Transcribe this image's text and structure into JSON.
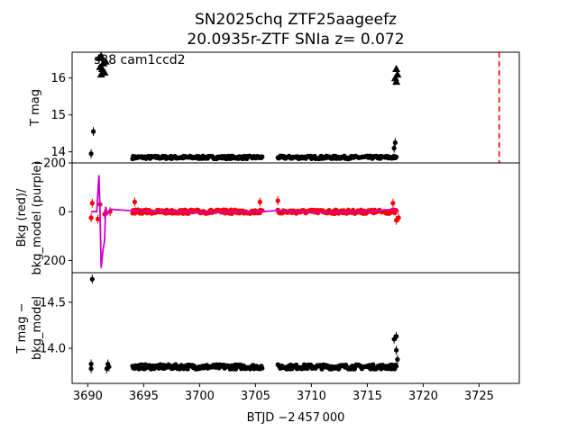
{
  "chart_data": {
    "type": "scatter",
    "title_line1": "SN2025chq  ZTF25aageefz",
    "title_line2": "20.0935r-ZTF SNIa z= 0.072",
    "annotation": "s88 cam1ccd2",
    "xlabel": "BTJD −2 457 000",
    "xlim": [
      3688.6,
      3728.6
    ],
    "xticks": [
      3690,
      3695,
      3700,
      3705,
      3710,
      3715,
      3720,
      3725
    ],
    "x_tick_labels": [
      "3690",
      "3695",
      "3700",
      "3705",
      "3710",
      "3715",
      "3720",
      "3725"
    ],
    "panels": [
      {
        "id": "top",
        "ylabel_lines": [
          "T mag"
        ],
        "ylim": [
          16.7,
          13.7
        ],
        "yticks": [
          14,
          15,
          16
        ],
        "y_tick_labels": [
          "14",
          "15",
          "16"
        ],
        "vline": {
          "x": 3726.8,
          "color": "#ff0000",
          "style": "dashed"
        },
        "series": [
          {
            "color": "#000000",
            "segments": [
              [
                3694.0,
                3705.6,
                13.85,
                0.04
              ],
              [
                3707.0,
                3717.6,
                13.85,
                0.04
              ]
            ],
            "points": [
              [
                3690.3,
                13.95
              ],
              [
                3690.5,
                14.55
              ],
              [
                3717.5,
                14.25
              ],
              [
                3717.4,
                14.1
              ]
            ]
          },
          {
            "color": "#000000",
            "marker": "triangle",
            "points": [
              [
                3691.0,
                16.55
              ],
              [
                3691.1,
                16.3
              ],
              [
                3691.2,
                16.1
              ],
              [
                3691.3,
                16.25
              ],
              [
                3691.4,
                16.4
              ],
              [
                3691.5,
                16.15
              ],
              [
                3691.6,
                16.45
              ],
              [
                3691.2,
                16.6
              ],
              [
                3717.6,
                15.9
              ],
              [
                3717.7,
                16.1
              ],
              [
                3717.5,
                16.0
              ],
              [
                3717.6,
                16.25
              ]
            ]
          }
        ]
      },
      {
        "id": "middle",
        "ylabel_lines": [
          "Bkg (red)/",
          "bkg_model (purple)"
        ],
        "ylim": [
          -200,
          250
        ],
        "yticks": [
          -200,
          0,
          200
        ],
        "y_tick_labels": [
          "−200",
          "0",
          "200"
        ],
        "series": [
          {
            "color": "#ff0000",
            "segments": [
              [
                3694.0,
                3705.6,
                0,
                8
              ],
              [
                3707.0,
                3717.6,
                0,
                8
              ]
            ],
            "points": [
              [
                3690.3,
                25
              ],
              [
                3690.4,
                -35
              ],
              [
                3690.9,
                30
              ],
              [
                3691.1,
                -30
              ],
              [
                3691.5,
                10
              ],
              [
                3692.0,
                0
              ],
              [
                3694.2,
                -40
              ],
              [
                3705.4,
                -40
              ],
              [
                3707.0,
                -45
              ],
              [
                3717.3,
                -35
              ],
              [
                3717.6,
                35
              ],
              [
                3717.8,
                25
              ]
            ]
          },
          {
            "color": "#cc00cc",
            "line": true,
            "points": [
              [
                3690.3,
                0
              ],
              [
                3690.8,
                0
              ],
              [
                3691.0,
                -150
              ],
              [
                3691.1,
                10
              ],
              [
                3691.2,
                230
              ],
              [
                3691.35,
                160
              ],
              [
                3691.5,
                120
              ],
              [
                3691.6,
                -20
              ],
              [
                3691.75,
                10
              ],
              [
                3692.0,
                -10
              ],
              [
                3693.5,
                -5
              ],
              [
                3700.0,
                2
              ],
              [
                3705.6,
                0
              ],
              [
                3707.0,
                -5
              ],
              [
                3710.0,
                3
              ],
              [
                3715.0,
                0
              ],
              [
                3717.3,
                -10
              ],
              [
                3717.8,
                0
              ]
            ]
          }
        ]
      },
      {
        "id": "bottom",
        "ylabel_lines": [
          "T mag −",
          "bkg_model"
        ],
        "ylim": [
          14.82,
          13.62
        ],
        "yticks": [
          14.0,
          14.5
        ],
        "y_tick_labels": [
          "14.0",
          "14.5"
        ],
        "series": [
          {
            "color": "#000000",
            "segments": [
              [
                3694.0,
                3705.6,
                13.8,
                0.025
              ],
              [
                3707.0,
                3717.6,
                13.8,
                0.025
              ]
            ],
            "points": [
              [
                3690.3,
                13.78
              ],
              [
                3690.3,
                13.83
              ],
              [
                3690.4,
                14.75
              ],
              [
                3691.7,
                13.78
              ],
              [
                3691.8,
                13.83
              ],
              [
                3691.9,
                13.8
              ],
              [
                3717.4,
                14.1
              ],
              [
                3717.6,
                14.13
              ],
              [
                3717.6,
                13.98
              ],
              [
                3717.7,
                13.88
              ]
            ]
          }
        ]
      }
    ]
  }
}
